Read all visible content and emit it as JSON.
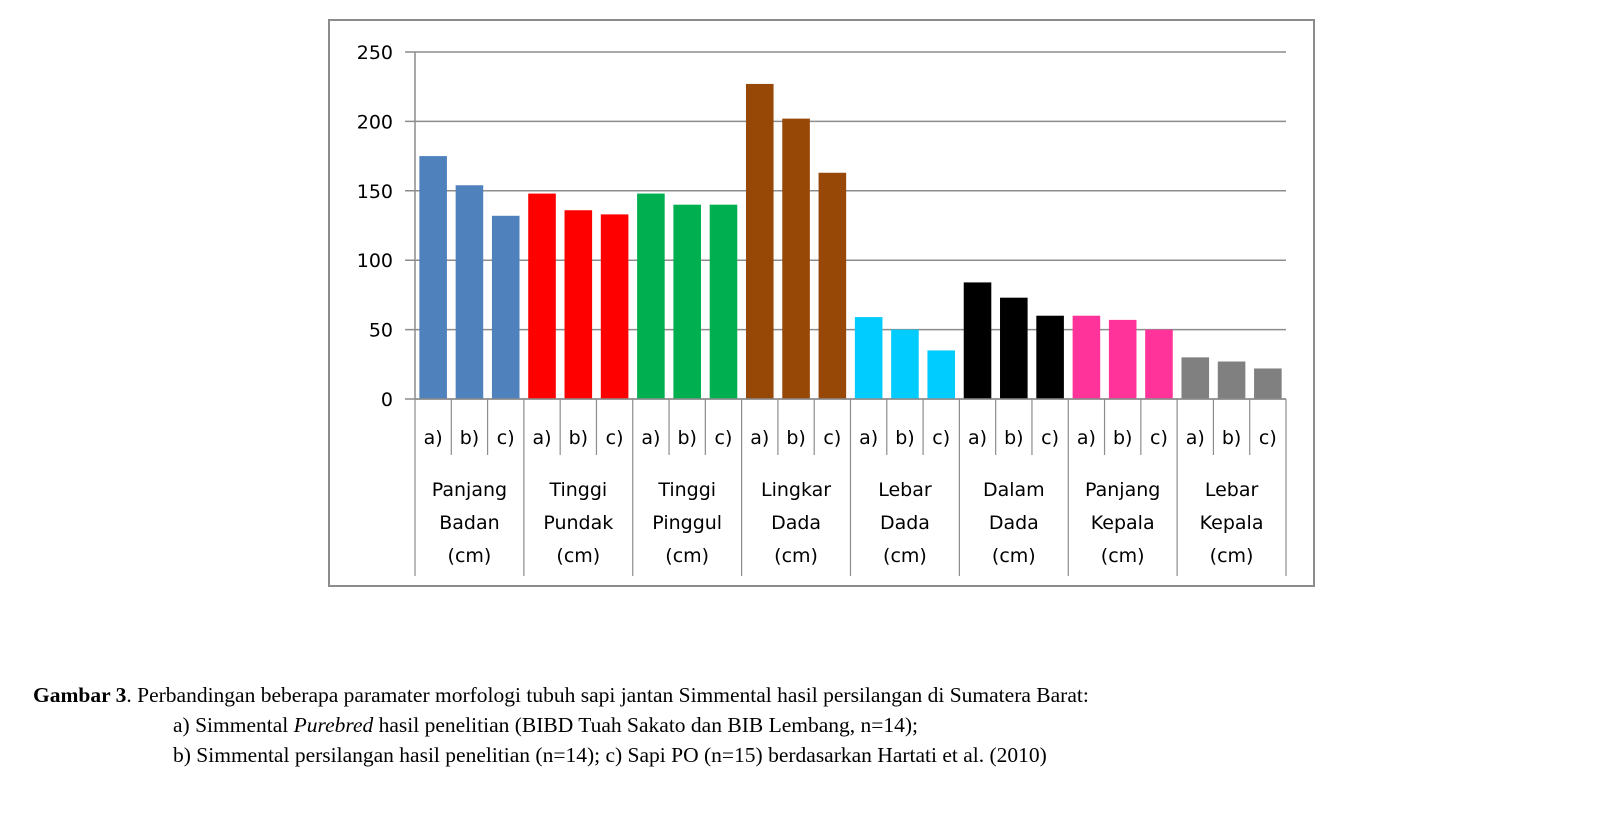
{
  "chart_data": {
    "type": "bar",
    "title": "",
    "xlabel": "",
    "ylabel": "",
    "ylim": [
      0,
      250
    ],
    "yticks": [
      "0",
      "50",
      "100",
      "150",
      "200",
      "250"
    ],
    "grid": true,
    "legend": "none",
    "sub_labels": [
      "a)",
      "b)",
      "c)"
    ],
    "categories": [
      {
        "label_lines": [
          "Panjang",
          "Badan",
          "(cm)"
        ],
        "values": [
          175,
          154,
          132
        ],
        "color": "#4f81bd"
      },
      {
        "label_lines": [
          "Tinggi",
          "Pundak",
          "(cm)"
        ],
        "values": [
          148,
          136,
          133
        ],
        "color": "#ff0000"
      },
      {
        "label_lines": [
          "Tinggi",
          "Pinggul",
          "(cm)"
        ],
        "values": [
          148,
          140,
          140
        ],
        "color": "#00b050"
      },
      {
        "label_lines": [
          "Lingkar",
          "Dada",
          "(cm)"
        ],
        "values": [
          227,
          202,
          163
        ],
        "color": "#974706"
      },
      {
        "label_lines": [
          "Lebar",
          "Dada",
          "(cm)"
        ],
        "values": [
          59,
          50,
          35
        ],
        "color": "#00ccff"
      },
      {
        "label_lines": [
          "Dalam",
          "Dada",
          "(cm)"
        ],
        "values": [
          84,
          73,
          60
        ],
        "color": "#000000"
      },
      {
        "label_lines": [
          "Panjang",
          "Kepala",
          "(cm)"
        ],
        "values": [
          60,
          57,
          50
        ],
        "color": "#ff3399"
      },
      {
        "label_lines": [
          "Lebar",
          "Kepala",
          "(cm)"
        ],
        "values": [
          30,
          27,
          22
        ],
        "color": "#808080"
      }
    ]
  },
  "caption": {
    "label": "Gambar 3",
    "line1": ". Perbandingan beberapa paramater morfologi tubuh sapi jantan Simmental hasil persilangan di Sumatera Barat:",
    "line2_pre": "a) Simmental ",
    "line2_italic": "Purebred",
    "line2_post": " hasil penelitian (BIBD Tuah Sakato dan BIB Lembang, n=14);",
    "line3": "b) Simmental persilangan hasil penelitian (n=14); c) Sapi PO (n=15) berdasarkan Hartati et al. (2010)"
  }
}
